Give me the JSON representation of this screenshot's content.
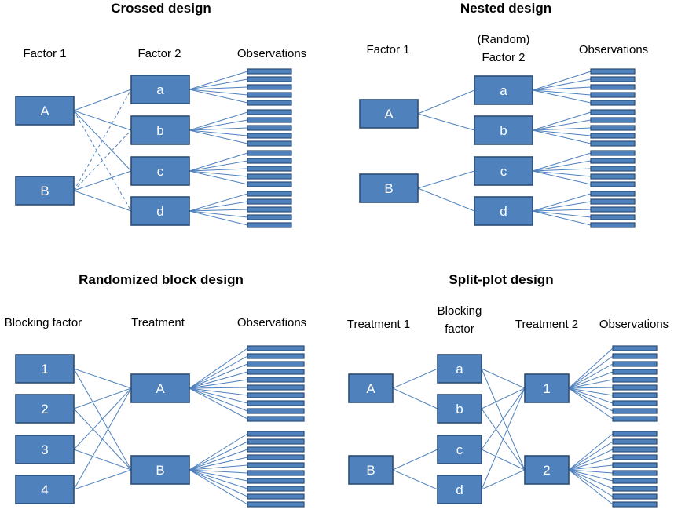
{
  "panels": [
    {
      "key": "crossed",
      "title": "Crossed design",
      "headers": [
        "Factor 1",
        "Factor 2",
        "Observations"
      ],
      "factor1": [
        "A",
        "B"
      ],
      "factor2": [
        "a",
        "b",
        "c",
        "d"
      ],
      "obs_per_node": 5
    },
    {
      "key": "nested",
      "title": "Nested design",
      "headers": [
        "Factor 1",
        "(Random)",
        "Factor 2",
        "Observations"
      ],
      "factor1": [
        "A",
        "B"
      ],
      "factor2": [
        "a",
        "b",
        "c",
        "d"
      ],
      "obs_per_node": 5
    },
    {
      "key": "block",
      "title": "Randomized block design",
      "headers": [
        "Blocking factor",
        "Treatment",
        "Observations"
      ],
      "blocks": [
        "1",
        "2",
        "3",
        "4"
      ],
      "treatments": [
        "A",
        "B"
      ],
      "obs_per_node": 10
    },
    {
      "key": "split",
      "title": "Split-plot design",
      "headers": [
        "Treatment 1",
        "Blocking",
        "factor",
        "Treatment 2",
        "Observations"
      ],
      "treatment1": [
        "A",
        "B"
      ],
      "blocks": [
        "a",
        "b",
        "c",
        "d"
      ],
      "treatment2": [
        "1",
        "2"
      ],
      "obs_per_node": 10
    }
  ],
  "colors": {
    "box_fill": "#4f81bd",
    "box_stroke": "#2c4d75",
    "line": "#4f81bd",
    "label": "#ffffff"
  }
}
